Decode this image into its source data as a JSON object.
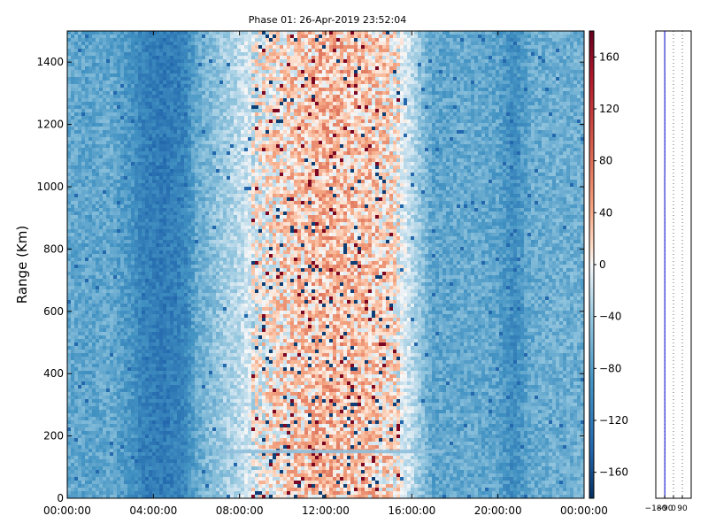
{
  "chart_data": [
    {
      "type": "heatmap",
      "title": "Phase 01: 26-Apr-2019 23:52:04",
      "xlabel": "",
      "ylabel": "Range (Km)",
      "x_ticks": [
        "00:00:00",
        "04:00:00",
        "08:00:00",
        "12:00:00",
        "16:00:00",
        "20:00:00",
        "00:00:00"
      ],
      "x_range_hours": [
        0,
        24
      ],
      "y_ticks": [
        0,
        200,
        400,
        600,
        800,
        1000,
        1200,
        1400
      ],
      "ylim": [
        0,
        1500
      ],
      "colorbar": {
        "ticks": [
          160,
          120,
          80,
          40,
          0,
          -40,
          -80,
          -120,
          -160
        ],
        "range": [
          -180,
          180
        ],
        "colormap": "RdBu_r"
      },
      "grid": false,
      "column_mean_phase": [
        [
          0.0,
          -70
        ],
        [
          1.0,
          -75
        ],
        [
          2.0,
          -70
        ],
        [
          3.0,
          -90
        ],
        [
          3.5,
          -110
        ],
        [
          4.5,
          -120
        ],
        [
          5.5,
          -105
        ],
        [
          6.0,
          -70
        ],
        [
          7.0,
          -45
        ],
        [
          8.0,
          -25
        ],
        [
          9.0,
          0
        ],
        [
          10.0,
          15
        ],
        [
          11.0,
          25
        ],
        [
          12.0,
          35
        ],
        [
          13.0,
          30
        ],
        [
          14.0,
          25
        ],
        [
          15.0,
          15
        ],
        [
          16.0,
          -25
        ],
        [
          17.0,
          -75
        ],
        [
          18.0,
          -70
        ],
        [
          19.0,
          -70
        ],
        [
          20.0,
          -75
        ],
        [
          20.7,
          -100
        ],
        [
          21.5,
          -70
        ],
        [
          22.5,
          -65
        ],
        [
          24.0,
          -65
        ]
      ],
      "features": [
        {
          "type": "horizontal_band",
          "range_km": 150,
          "start_hour": 7.0,
          "end_hour": 17.5
        }
      ]
    },
    {
      "type": "line",
      "title": "",
      "xlabel": "",
      "ylabel": "",
      "x_ticks": [
        "-180",
        "-90",
        "0",
        "90"
      ],
      "xlim": [
        -180,
        180
      ],
      "ylim": [
        0,
        1500
      ],
      "grid": true,
      "line_color": "#0000cc",
      "profile_x_at_y": [
        [
          0,
          -88
        ],
        [
          100,
          -88
        ],
        [
          200,
          -87
        ],
        [
          300,
          -88
        ],
        [
          400,
          -88
        ],
        [
          500,
          -88
        ],
        [
          600,
          -88
        ],
        [
          700,
          -88
        ],
        [
          800,
          -88
        ],
        [
          900,
          -88
        ],
        [
          1000,
          -89
        ],
        [
          1100,
          -88
        ],
        [
          1200,
          -88
        ],
        [
          1300,
          -88
        ],
        [
          1400,
          -89
        ],
        [
          1500,
          -89
        ]
      ]
    }
  ]
}
